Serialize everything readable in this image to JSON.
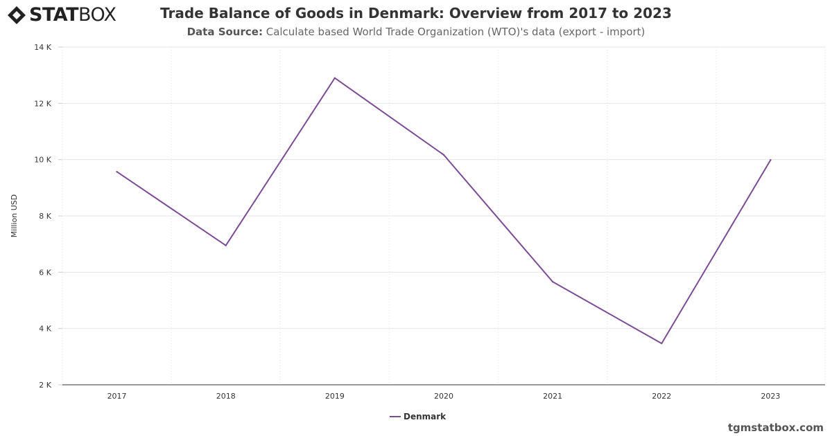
{
  "brand": {
    "name_bold": "STAT",
    "name_light": "BOX",
    "icon": "statbox-diamond-icon"
  },
  "header": {
    "title": "Trade Balance of Goods in Denmark: Overview from 2017 to 2023",
    "subtitle_label": "Data Source:",
    "subtitle_text": " Calculate based World Trade Organization (WTO)'s data (export - import)"
  },
  "footer": {
    "watermark": "tgmstatbox.com"
  },
  "chart_data": {
    "type": "line",
    "title": "Trade Balance of Goods in Denmark: Overview from 2017 to 2023",
    "xlabel": "",
    "ylabel": "Million USD",
    "x": [
      "2017",
      "2018",
      "2019",
      "2020",
      "2021",
      "2022",
      "2023"
    ],
    "ylim": [
      2000,
      14000
    ],
    "yticks": [
      2000,
      4000,
      6000,
      8000,
      10000,
      12000,
      14000
    ],
    "ytick_labels": [
      "2 K",
      "4 K",
      "6 K",
      "8 K",
      "10 K",
      "12 K",
      "14 K"
    ],
    "grid": true,
    "legend": "bottom-center",
    "series": [
      {
        "name": "Denmark",
        "color": "#7b4b94",
        "values": [
          9570,
          6950,
          12900,
          10170,
          5660,
          3470,
          9990
        ]
      }
    ]
  }
}
